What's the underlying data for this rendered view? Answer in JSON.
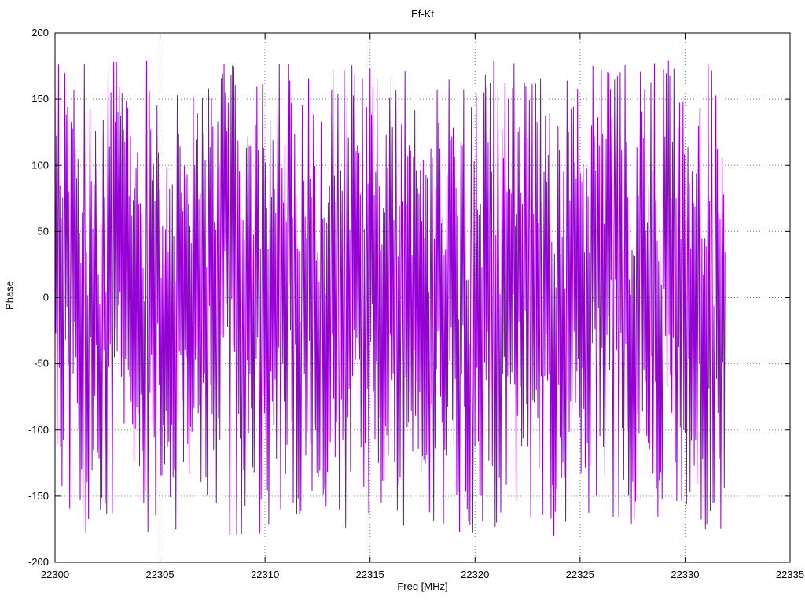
{
  "page": {
    "background": "#ffffff"
  },
  "chart_data": {
    "type": "line",
    "title": "Ef-Kt",
    "xlabel": "Freq [MHz]",
    "ylabel": "Phase",
    "xlim": [
      22300,
      22335
    ],
    "ylim": [
      -200,
      200
    ],
    "x_ticks": [
      "22300",
      "22305",
      "22310",
      "22315",
      "22320",
      "22325",
      "22330",
      "22335"
    ],
    "x_tick_values": [
      22300,
      22305,
      22310,
      22315,
      22320,
      22325,
      22330,
      22335
    ],
    "y_ticks": [
      "-200",
      "-150",
      "-100",
      "-50",
      "0",
      "50",
      "100",
      "150",
      "200"
    ],
    "y_tick_values": [
      -200,
      -150,
      -100,
      -50,
      0,
      50,
      100,
      150,
      200
    ],
    "grid": "dotted",
    "grid_color": "#808080",
    "border_color": "#000000",
    "legend": "none",
    "series": [
      {
        "name": "phase",
        "color": "#9400d3",
        "description": "Wrapped phase (degrees) versus frequency; dense noise-like wrapped-phase trace filling -180..180 deg from 22300 MHz to about 22332 MHz, blank from 22332 to 22335 MHz",
        "synthesis": {
          "x_start": 22300.0,
          "x_end": 22331.9,
          "num_points": 960,
          "wrap_range_deg": [
            -180,
            180
          ],
          "base_step_deg": 167.4,
          "slow_modulation_amp_deg": 35,
          "slow_modulation_rate": 0.013,
          "noise_amplitude_deg": 55,
          "seed": 1234567
        }
      }
    ]
  }
}
